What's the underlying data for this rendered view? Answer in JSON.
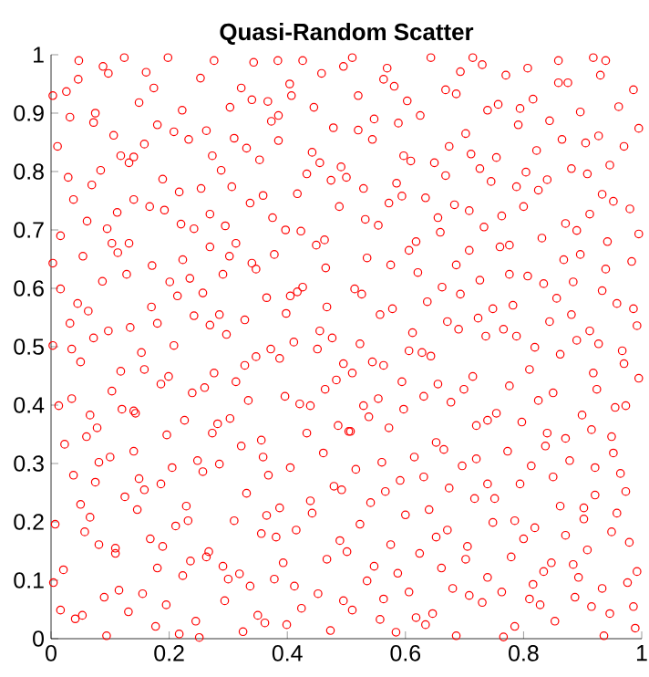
{
  "chart_data": {
    "type": "scatter",
    "title": "Quasi-Random Scatter",
    "color": "#ff0000",
    "marker": "circle",
    "xlim": [
      0,
      1
    ],
    "ylim": [
      0,
      1
    ],
    "xticks": [
      0,
      0.2,
      0.4,
      0.6,
      0.8,
      1
    ],
    "yticks": [
      0,
      0.1,
      0.2,
      0.3,
      0.4,
      0.5,
      0.6,
      0.7,
      0.8,
      0.9,
      1
    ],
    "x": [
      0.047,
      0.124,
      0.198,
      0.276,
      0.343,
      0.384,
      0.426,
      0.495,
      0.088,
      0.097,
      0.161,
      0.046,
      0.253,
      0.174,
      0.458,
      0.322,
      0.404,
      0.003,
      0.026,
      0.149,
      0.222,
      0.303,
      0.34,
      0.367,
      0.407,
      0.445,
      0.032,
      0.075,
      0.072,
      0.18,
      0.373,
      0.385,
      0.478,
      0.106,
      0.208,
      0.263,
      0.233,
      0.31,
      0.385,
      0.011,
      0.158,
      0.331,
      0.442,
      0.118,
      0.14,
      0.132,
      0.273,
      0.353,
      0.455,
      0.084,
      0.288,
      0.491,
      0.029,
      0.433,
      0.189,
      0.474,
      0.5,
      0.069,
      0.254,
      0.306,
      0.217,
      0.359,
      0.417,
      0.038,
      0.14,
      0.337,
      0.167,
      0.192,
      0.269,
      0.112,
      0.375,
      0.488,
      0.061,
      0.22,
      0.295,
      0.095,
      0.242,
      0.397,
      0.423,
      0.016,
      0.463,
      0.103,
      0.132,
      0.269,
      0.113,
      0.313,
      0.449,
      0.378,
      0.054,
      0.223,
      0.003,
      0.302,
      0.34,
      0.465,
      0.171,
      0.347,
      0.128,
      0.087,
      0.201,
      0.235,
      0.291,
      0.016,
      0.214,
      0.257,
      0.405,
      0.417,
      0.426,
      0.365,
      0.045,
      0.063,
      0.17,
      0.285,
      0.398,
      0.467,
      0.242,
      0.328,
      0.032,
      0.072,
      0.097,
      0.134,
      0.18,
      0.269,
      0.297,
      0.455,
      0.411,
      0.476,
      0.003,
      0.035,
      0.153,
      0.208,
      0.372,
      0.451,
      0.51,
      0.643,
      0.714,
      0.859,
      0.918,
      0.939,
      0.569,
      0.563,
      0.581,
      0.693,
      0.73,
      0.77,
      0.807,
      0.859,
      0.875,
      0.93,
      0.986,
      0.52,
      0.668,
      0.686,
      0.603,
      0.739,
      0.757,
      0.794,
      0.816,
      0.896,
      0.961,
      0.547,
      0.588,
      0.625,
      0.791,
      0.844,
      0.995,
      0.52,
      0.544,
      0.702,
      0.865,
      0.905,
      0.927,
      0.97,
      0.674,
      0.822,
      0.597,
      0.609,
      0.649,
      0.711,
      0.754,
      0.946,
      0.726,
      0.881,
      0.908,
      0.668,
      0.804,
      0.585,
      0.745,
      0.84,
      0.529,
      0.788,
      0.825,
      0.594,
      0.634,
      0.933,
      0.952,
      0.572,
      0.683,
      0.708,
      0.8,
      0.98,
      0.912,
      0.763,
      0.532,
      0.554,
      0.655,
      0.871,
      0.89,
      0.733,
      0.659,
      0.995,
      0.831,
      0.618,
      0.606,
      0.942,
      0.76,
      0.776,
      0.708,
      0.896,
      0.535,
      0.868,
      0.983,
      0.575,
      0.686,
      0.939,
      0.621,
      0.776,
      0.807,
      0.726,
      0.834,
      0.884,
      0.514,
      0.526,
      0.662,
      0.933,
      0.693,
      0.856,
      0.637,
      0.782,
      0.958,
      0.557,
      0.578,
      0.748,
      0.986,
      0.723,
      0.881,
      0.671,
      0.69,
      0.766,
      0.844,
      0.992,
      0.612,
      0.736,
      0.788,
      0.912,
      0.523,
      0.606,
      0.628,
      0.643,
      0.819,
      0.862,
      0.89,
      0.927,
      0.967,
      0.05,
      0.118,
      0.158,
      0.186,
      0.199,
      0.103,
      0.239,
      0.26,
      0.276,
      0.313,
      0.328,
      0.347,
      0.387,
      0.495,
      0.464,
      0.483,
      0.396,
      0.421,
      0.439,
      0.334,
      0.013,
      0.035,
      0.066,
      0.078,
      0.06,
      0.023,
      0.14,
      0.143,
      0.12,
      0.196,
      0.226,
      0.273,
      0.282,
      0.303,
      0.486,
      0.504,
      0.433,
      0.356,
      0.359,
      0.322,
      0.14,
      0.1,
      0.081,
      0.248,
      0.257,
      0.285,
      0.205,
      0.405,
      0.461,
      0.038,
      0.075,
      0.149,
      0.158,
      0.186,
      0.368,
      0.331,
      0.125,
      0.146,
      0.229,
      0.05,
      0.066,
      0.439,
      0.442,
      0.479,
      0.492,
      0.387,
      0.365,
      0.31,
      0.232,
      0.211,
      0.007,
      0.057,
      0.168,
      0.189,
      0.081,
      0.109,
      0.109,
      0.356,
      0.381,
      0.415,
      0.489,
      0.501,
      0.467,
      0.267,
      0.263,
      0.236,
      0.021,
      0.18,
      0.291,
      0.393,
      0.223,
      0.3,
      0.319,
      0.004,
      0.378,
      0.337,
      0.412,
      0.115,
      0.155,
      0.452,
      0.09,
      0.294,
      0.195,
      0.424,
      0.016,
      0.131,
      0.495,
      0.053,
      0.041,
      0.35,
      0.362,
      0.177,
      0.245,
      0.399,
      0.473,
      0.325,
      0.094,
      0.217,
      0.251,
      0.97,
      0.544,
      0.563,
      0.51,
      0.81,
      0.918,
      0.995,
      0.594,
      0.655,
      0.714,
      0.699,
      0.776,
      0.554,
      0.529,
      0.538,
      0.597,
      0.631,
      0.677,
      0.85,
      0.825,
      0.924,
      0.955,
      0.973,
      0.739,
      0.754,
      0.72,
      0.797,
      0.899,
      0.915,
      0.84,
      0.871,
      0.572,
      0.507,
      0.652,
      0.665,
      0.837,
      0.949,
      0.952,
      0.615,
      0.72,
      0.773,
      0.878,
      0.56,
      0.696,
      0.813,
      0.921,
      0.516,
      0.631,
      0.85,
      0.964,
      0.591,
      0.739,
      0.794,
      0.566,
      0.674,
      0.973,
      0.921,
      0.717,
      0.751,
      0.541,
      0.64,
      0.862,
      0.902,
      0.902,
      0.958,
      0.6,
      0.748,
      0.785,
      0.819,
      0.523,
      0.671,
      0.652,
      0.949,
      0.871,
      0.8,
      0.979,
      0.575,
      0.705,
      0.702,
      0.624,
      0.779,
      0.908,
      0.847,
      0.884,
      0.834,
      0.547,
      0.587,
      0.661,
      0.992,
      0.535,
      0.739,
      0.893,
      0.976,
      0.68,
      0.816,
      0.933,
      0.606,
      0.708,
      0.763,
      0.563,
      0.73,
      0.81,
      0.828,
      0.887,
      0.51,
      0.646,
      0.915,
      0.946,
      0.986,
      0.557,
      0.618,
      0.634,
      0.853,
      0.785,
      0.584,
      0.686,
      0.766,
      0.936,
      0.989
    ],
    "values": [
      0.99,
      0.995,
      0.995,
      0.99,
      0.987,
      0.99,
      0.99,
      0.98,
      0.98,
      0.968,
      0.97,
      0.958,
      0.96,
      0.943,
      0.968,
      0.943,
      0.95,
      0.93,
      0.937,
      0.918,
      0.905,
      0.91,
      0.923,
      0.92,
      0.93,
      0.91,
      0.893,
      0.9,
      0.884,
      0.88,
      0.886,
      0.896,
      0.875,
      0.862,
      0.868,
      0.87,
      0.855,
      0.857,
      0.853,
      0.843,
      0.847,
      0.84,
      0.833,
      0.827,
      0.825,
      0.815,
      0.827,
      0.82,
      0.815,
      0.802,
      0.802,
      0.808,
      0.79,
      0.796,
      0.787,
      0.785,
      0.79,
      0.777,
      0.771,
      0.774,
      0.765,
      0.759,
      0.762,
      0.752,
      0.752,
      0.746,
      0.74,
      0.734,
      0.727,
      0.73,
      0.721,
      0.74,
      0.715,
      0.71,
      0.707,
      0.702,
      0.702,
      0.7,
      0.698,
      0.69,
      0.683,
      0.677,
      0.677,
      0.671,
      0.661,
      0.677,
      0.674,
      0.658,
      0.655,
      0.649,
      0.643,
      0.655,
      0.643,
      0.635,
      0.639,
      0.633,
      0.624,
      0.612,
      0.611,
      0.617,
      0.624,
      0.599,
      0.587,
      0.592,
      0.587,
      0.594,
      0.602,
      0.584,
      0.574,
      0.561,
      0.568,
      0.555,
      0.557,
      0.568,
      0.553,
      0.546,
      0.54,
      0.515,
      0.527,
      0.533,
      0.54,
      0.537,
      0.521,
      0.527,
      0.508,
      0.515,
      0.502,
      0.496,
      0.49,
      0.502,
      0.496,
      0.496,
      0.995,
      0.995,
      0.995,
      0.99,
      0.995,
      0.99,
      0.977,
      0.958,
      0.946,
      0.971,
      0.983,
      0.965,
      0.977,
      0.952,
      0.952,
      0.965,
      0.94,
      0.93,
      0.94,
      0.933,
      0.921,
      0.905,
      0.915,
      0.908,
      0.924,
      0.902,
      0.911,
      0.89,
      0.883,
      0.896,
      0.88,
      0.887,
      0.874,
      0.871,
      0.855,
      0.865,
      0.855,
      0.849,
      0.861,
      0.843,
      0.843,
      0.836,
      0.827,
      0.818,
      0.815,
      0.83,
      0.824,
      0.811,
      0.805,
      0.805,
      0.796,
      0.793,
      0.799,
      0.78,
      0.783,
      0.786,
      0.771,
      0.774,
      0.768,
      0.758,
      0.755,
      0.761,
      0.749,
      0.746,
      0.743,
      0.733,
      0.74,
      0.736,
      0.727,
      0.724,
      0.718,
      0.708,
      0.721,
      0.711,
      0.699,
      0.705,
      0.696,
      0.693,
      0.686,
      0.68,
      0.665,
      0.68,
      0.671,
      0.674,
      0.665,
      0.658,
      0.652,
      0.649,
      0.646,
      0.64,
      0.64,
      0.633,
      0.627,
      0.624,
      0.621,
      0.614,
      0.608,
      0.611,
      0.599,
      0.59,
      0.602,
      0.596,
      0.59,
      0.583,
      0.577,
      0.571,
      0.574,
      0.555,
      0.565,
      0.565,
      0.565,
      0.549,
      0.555,
      0.543,
      0.53,
      0.53,
      0.543,
      0.536,
      0.524,
      0.518,
      0.518,
      0.527,
      0.505,
      0.493,
      0.49,
      0.484,
      0.499,
      0.487,
      0.511,
      0.505,
      0.493,
      0.474,
      0.458,
      0.461,
      0.436,
      0.449,
      0.424,
      0.421,
      0.43,
      0.455,
      0.44,
      0.468,
      0.483,
      0.48,
      0.471,
      0.427,
      0.443,
      0.415,
      0.402,
      0.399,
      0.408,
      0.399,
      0.411,
      0.383,
      0.361,
      0.346,
      0.333,
      0.39,
      0.386,
      0.393,
      0.349,
      0.374,
      0.352,
      0.368,
      0.377,
      0.365,
      0.355,
      0.352,
      0.34,
      0.311,
      0.33,
      0.321,
      0.311,
      0.302,
      0.305,
      0.286,
      0.299,
      0.293,
      0.293,
      0.318,
      0.28,
      0.268,
      0.274,
      0.255,
      0.265,
      0.28,
      0.249,
      0.243,
      0.221,
      0.227,
      0.23,
      0.208,
      0.236,
      0.215,
      0.261,
      0.255,
      0.224,
      0.211,
      0.202,
      0.202,
      0.193,
      0.196,
      0.183,
      0.171,
      0.158,
      0.161,
      0.155,
      0.146,
      0.18,
      0.174,
      0.186,
      0.168,
      0.149,
      0.136,
      0.149,
      0.14,
      0.133,
      0.118,
      0.121,
      0.124,
      0.13,
      0.108,
      0.102,
      0.111,
      0.096,
      0.102,
      0.09,
      0.09,
      0.083,
      0.077,
      0.077,
      0.071,
      0.065,
      0.058,
      0.052,
      0.049,
      0.046,
      0.065,
      0.04,
      0.034,
      0.04,
      0.027,
      0.021,
      0.03,
      0.024,
      0.014,
      0.012,
      0.005,
      0.008,
      0.002,
      0.471,
      0.474,
      0.468,
      0.455,
      0.461,
      0.455,
      0.446,
      0.44,
      0.436,
      0.449,
      0.427,
      0.433,
      0.411,
      0.399,
      0.38,
      0.393,
      0.415,
      0.405,
      0.421,
      0.408,
      0.427,
      0.396,
      0.399,
      0.374,
      0.386,
      0.365,
      0.371,
      0.383,
      0.358,
      0.352,
      0.343,
      0.361,
      0.355,
      0.336,
      0.324,
      0.33,
      0.346,
      0.318,
      0.311,
      0.308,
      0.321,
      0.305,
      0.302,
      0.296,
      0.296,
      0.293,
      0.29,
      0.277,
      0.277,
      0.283,
      0.271,
      0.265,
      0.265,
      0.252,
      0.258,
      0.252,
      0.246,
      0.24,
      0.24,
      0.233,
      0.221,
      0.227,
      0.224,
      0.205,
      0.215,
      0.212,
      0.199,
      0.202,
      0.19,
      0.196,
      0.186,
      0.174,
      0.183,
      0.177,
      0.171,
      0.165,
      0.161,
      0.158,
      0.136,
      0.146,
      0.14,
      0.152,
      0.13,
      0.127,
      0.115,
      0.124,
      0.112,
      0.121,
      0.115,
      0.099,
      0.105,
      0.105,
      0.096,
      0.086,
      0.093,
      0.086,
      0.08,
      0.074,
      0.08,
      0.068,
      0.062,
      0.068,
      0.058,
      0.071,
      0.049,
      0.043,
      0.055,
      0.043,
      0.055,
      0.033,
      0.036,
      0.024,
      0.03,
      0.021,
      0.011,
      0.005,
      0.003,
      0.005,
      0.018
    ]
  }
}
